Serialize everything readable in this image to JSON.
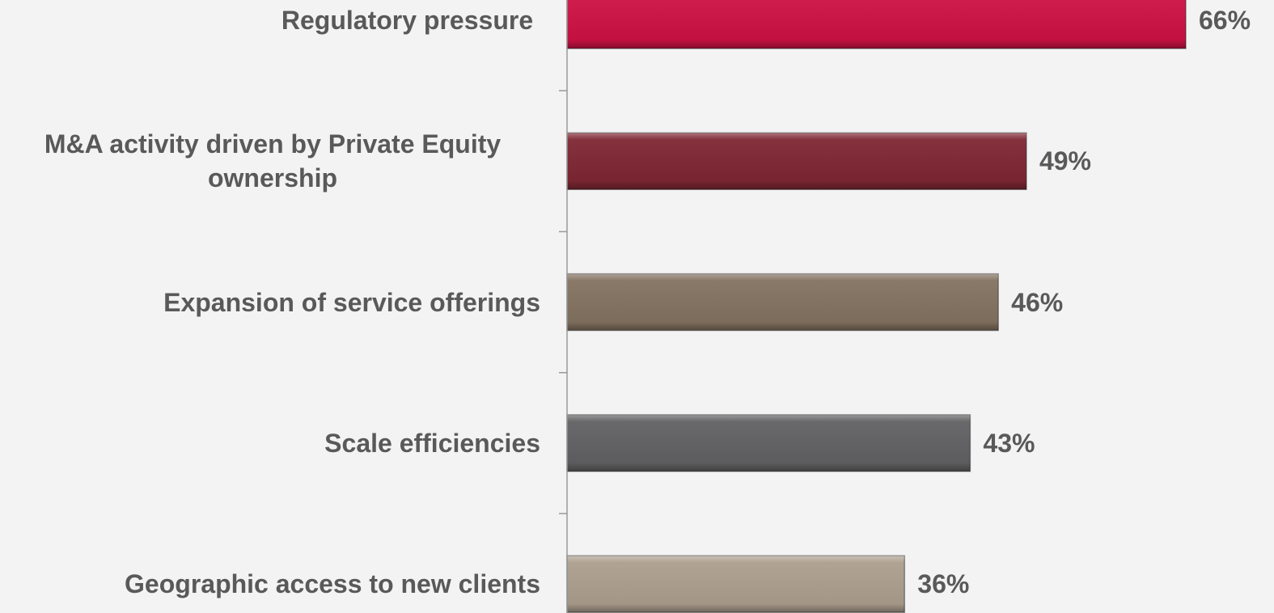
{
  "chart_data": {
    "type": "hbar",
    "categories": [
      "Regulatory pressure ",
      "M&A activity driven by Private Equity ownership",
      "Expansion of service offerings",
      "Scale efficiencies",
      "Geographic access to new clients"
    ],
    "values": [
      66,
      49,
      46,
      43,
      36
    ],
    "value_labels": [
      "66%",
      "49%",
      "46%",
      "43%",
      "36%"
    ],
    "colors": [
      "#cc1244",
      "#7e2733",
      "#837260",
      "#616163",
      "#ab9e8d"
    ]
  }
}
